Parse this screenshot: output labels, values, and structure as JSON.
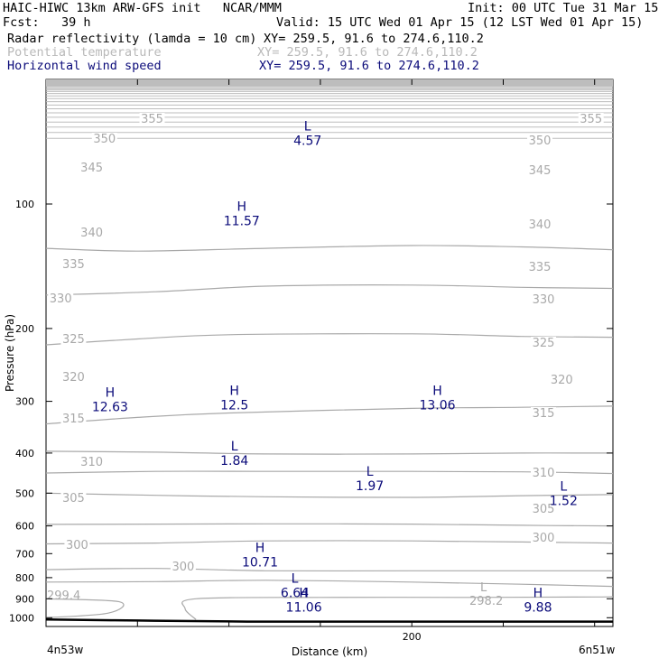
{
  "header": {
    "left1": "HAIC-HIWC 13km ARW-GFS init   NCAR/MMM",
    "right1": "Init: 00 UTC Tue 31 Mar 15",
    "left2": "Fcst:   39 h",
    "right2": "Valid: 15 UTC Wed 01 Apr 15 (12 LST Wed 01 Apr 15)",
    "field1_name": "Radar reflectivity (lamda = 10 cm)",
    "field1_xy": "XY= 259.5, 91.6 to 274.6,110.2",
    "field2_name": "Potential temperature",
    "field2_xy": "XY= 259.5, 91.6 to 274.6,110.2",
    "field3_name": "Horizontal wind speed",
    "field3_xy": "XY= 259.5, 91.6 to 274.6,110.2"
  },
  "corners": {
    "left": "4n53w",
    "right": "6n51w"
  },
  "colors": {
    "theta": "#a9a9a9",
    "wind_labels": "#0b0b7a",
    "ground": "#000000"
  },
  "chart_data": {
    "type": "line",
    "xlabel": "Distance (km)",
    "ylabel": "Pressure (hPa)",
    "xlim": [
      0,
      310
    ],
    "ylim": [
      1050,
      50
    ],
    "y_scale": "log",
    "x_ticks": [
      200
    ],
    "y_ticks": [
      100,
      200,
      300,
      400,
      500,
      600,
      700,
      800,
      900,
      1000
    ],
    "grid": false,
    "theta_contours": [
      {
        "label": "355",
        "points": [
          [
            0,
            128
          ],
          [
            50,
            130
          ],
          [
            120,
            128
          ],
          [
            200,
            126
          ],
          [
            260,
            127
          ],
          [
            310,
            129
          ]
        ],
        "labels_at": [
          [
            58,
            136
          ],
          [
            298,
            136
          ]
        ]
      },
      {
        "label": "350",
        "points": [
          [
            0,
            166
          ],
          [
            60,
            163
          ],
          [
            120,
            158
          ],
          [
            200,
            157
          ],
          [
            260,
            159
          ],
          [
            310,
            160
          ]
        ],
        "labels_at": [
          [
            32,
            158
          ],
          [
            270,
            160
          ]
        ]
      },
      {
        "label": "345",
        "points": [
          [
            0,
            219
          ],
          [
            50,
            212
          ],
          [
            100,
            207
          ],
          [
            200,
            206
          ],
          [
            260,
            209
          ],
          [
            310,
            210
          ]
        ],
        "labels_at": [
          [
            25,
            190
          ],
          [
            270,
            193
          ]
        ]
      },
      {
        "label": "340",
        "points": [
          [
            0,
            340
          ],
          [
            50,
            328
          ],
          [
            100,
            320
          ],
          [
            200,
            312
          ],
          [
            260,
            310
          ],
          [
            310,
            308
          ]
        ],
        "labels_at": [
          [
            25,
            262
          ],
          [
            270,
            253
          ]
        ]
      },
      {
        "label": "335",
        "points": [
          [
            0,
            396
          ],
          [
            60,
            398
          ],
          [
            120,
            402
          ],
          [
            200,
            402
          ],
          [
            260,
            400
          ],
          [
            310,
            400
          ]
        ],
        "labels_at": [
          [
            15,
            297
          ],
          [
            270,
            300
          ]
        ]
      },
      {
        "label": "330",
        "points": [
          [
            0,
            447
          ],
          [
            60,
            443
          ],
          [
            120,
            443
          ],
          [
            200,
            443
          ],
          [
            260,
            444
          ],
          [
            310,
            448
          ]
        ],
        "labels_at": [
          [
            8,
            335
          ],
          [
            272,
            336
          ]
        ]
      },
      {
        "label": "325",
        "points": [
          [
            0,
            500
          ],
          [
            60,
            506
          ],
          [
            120,
            510
          ],
          [
            200,
            512
          ],
          [
            260,
            507
          ],
          [
            310,
            504
          ]
        ],
        "labels_at": [
          [
            15,
            380
          ],
          [
            272,
            384
          ]
        ]
      },
      {
        "label": "320",
        "points": [
          [
            0,
            595
          ],
          [
            60,
            594
          ],
          [
            120,
            593
          ],
          [
            200,
            594
          ],
          [
            260,
            598
          ],
          [
            310,
            600
          ]
        ],
        "labels_at": [
          [
            15,
            422
          ],
          [
            282,
            425
          ]
        ]
      },
      {
        "label": "315",
        "points": [
          [
            0,
            663
          ],
          [
            60,
            660
          ],
          [
            120,
            652
          ],
          [
            200,
            652
          ],
          [
            260,
            656
          ],
          [
            310,
            660
          ]
        ],
        "labels_at": [
          [
            15,
            468
          ],
          [
            272,
            462
          ]
        ]
      },
      {
        "label": "310",
        "points": [
          [
            0,
            765
          ],
          [
            60,
            760
          ],
          [
            120,
            770
          ],
          [
            200,
            770
          ],
          [
            260,
            770
          ],
          [
            310,
            770
          ]
        ],
        "labels_at": [
          [
            25,
            516
          ],
          [
            272,
            528
          ]
        ]
      },
      {
        "label": "305",
        "points": [
          [
            0,
            820
          ],
          [
            60,
            818
          ],
          [
            120,
            812
          ],
          [
            200,
            820
          ],
          [
            260,
            830
          ],
          [
            310,
            840
          ]
        ],
        "labels_at": [
          [
            15,
            556
          ],
          [
            272,
            568
          ]
        ]
      },
      {
        "label": "300",
        "points": [
          [
            0,
            900
          ],
          [
            40,
            915
          ],
          [
            34,
            975
          ],
          [
            0,
            1000
          ]
        ],
        "labels_at": [
          [
            17,
            608
          ]
        ]
      },
      {
        "label": "300",
        "points": [
          [
            82,
            1010
          ],
          [
            76,
            950
          ],
          [
            82,
            900
          ],
          [
            150,
            893
          ],
          [
            230,
            893
          ],
          [
            300,
            891
          ],
          [
            310,
            890
          ]
        ],
        "labels_at": [
          [
            75,
            632
          ],
          [
            272,
            600
          ]
        ]
      }
    ],
    "theta_labels_extra": [
      "299.4",
      "298.2"
    ],
    "wind_extrema": [
      {
        "kind": "L",
        "value": "4.57",
        "x": 143,
        "p": 67
      },
      {
        "kind": "H",
        "value": "11.57",
        "x": 107,
        "p": 105
      },
      {
        "kind": "H",
        "value": "12.63",
        "x": 35,
        "p": 295
      },
      {
        "kind": "H",
        "value": "12.5",
        "x": 103,
        "p": 292
      },
      {
        "kind": "H",
        "value": "13.06",
        "x": 214,
        "p": 292
      },
      {
        "kind": "L",
        "value": "1.84",
        "x": 103,
        "p": 398
      },
      {
        "kind": "L",
        "value": "1.97",
        "x": 177,
        "p": 458
      },
      {
        "kind": "L",
        "value": "1.52",
        "x": 283,
        "p": 498
      },
      {
        "kind": "H",
        "value": "10.71",
        "x": 117,
        "p": 700
      },
      {
        "kind": "L",
        "value": "6.64",
        "x": 136,
        "p": 832
      },
      {
        "kind": "H",
        "value": "11.06",
        "x": 141,
        "p": 900
      },
      {
        "kind": "H",
        "value": "9.88",
        "x": 269,
        "p": 900
      }
    ],
    "ground_pressure": [
      [
        0,
        1010
      ],
      [
        50,
        1016
      ],
      [
        110,
        1022
      ],
      [
        200,
        1022
      ],
      [
        310,
        1022
      ]
    ]
  }
}
